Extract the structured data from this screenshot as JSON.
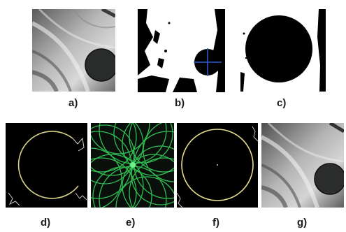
{
  "panels": [
    {
      "id": "a",
      "caption": "a)"
    },
    {
      "id": "b",
      "caption": "b)"
    },
    {
      "id": "c",
      "caption": "c)"
    },
    {
      "id": "d",
      "caption": "d)"
    },
    {
      "id": "e",
      "caption": "e)"
    },
    {
      "id": "f",
      "caption": "f)"
    },
    {
      "id": "g",
      "caption": "g)"
    }
  ]
}
